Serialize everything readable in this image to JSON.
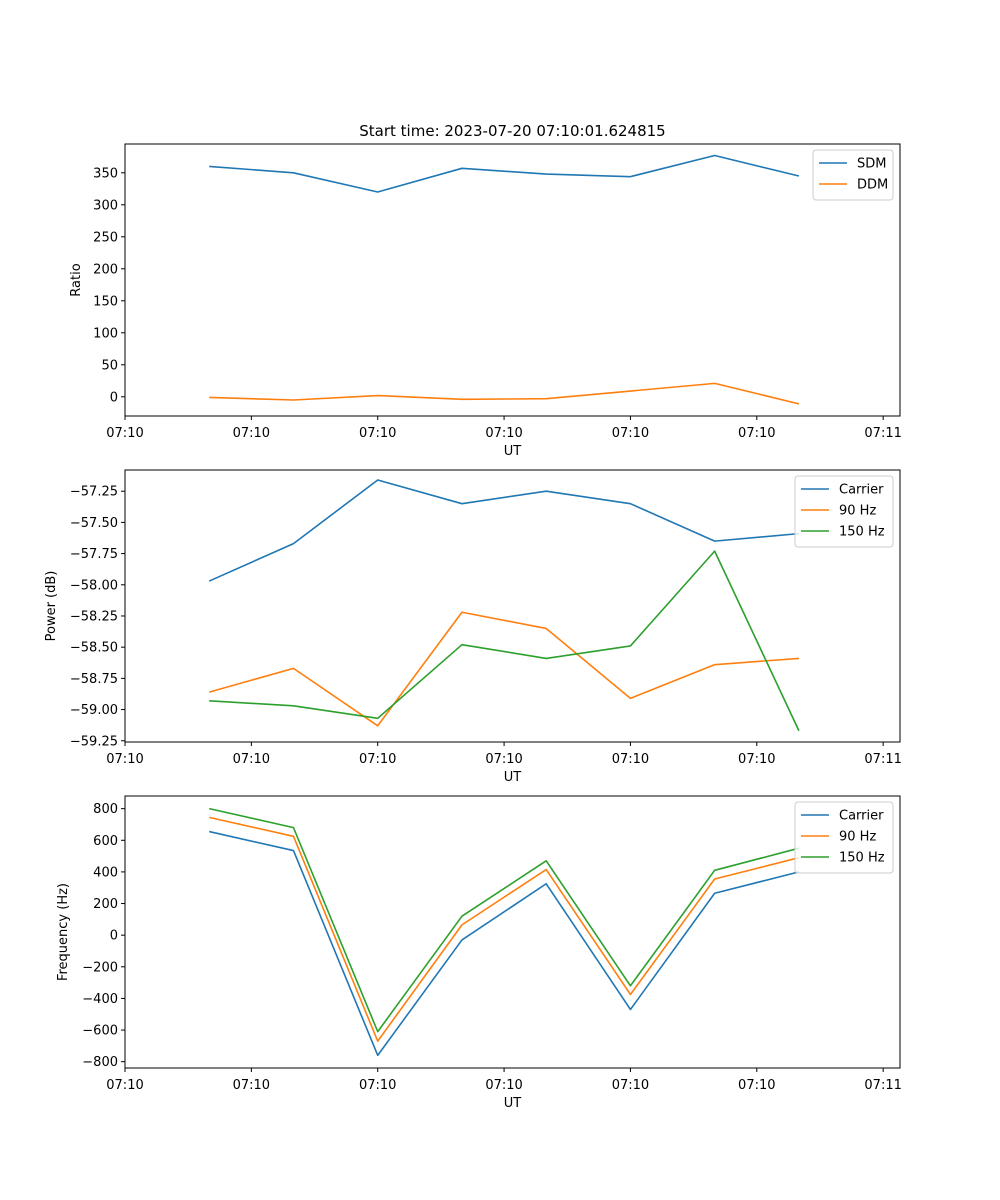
{
  "chart_data": [
    {
      "type": "line",
      "title": "Start time: 2023-07-20 07:10:01.624815",
      "xlabel": "UT",
      "ylabel": "Ratio",
      "x": [
        1,
        2,
        3,
        4,
        5,
        6,
        7,
        8
      ],
      "xlim": [
        0,
        9.2
      ],
      "ylim": [
        -30,
        395
      ],
      "xticks": [
        {
          "value": 0,
          "label": "07:10"
        },
        {
          "value": 1.5,
          "label": "07:10"
        },
        {
          "value": 3,
          "label": "07:10"
        },
        {
          "value": 4.5,
          "label": "07:10"
        },
        {
          "value": 6,
          "label": "07:10"
        },
        {
          "value": 7.5,
          "label": "07:10"
        },
        {
          "value": 9,
          "label": "07:11"
        }
      ],
      "yticks": [
        {
          "value": 0,
          "label": "0"
        },
        {
          "value": 50,
          "label": "50"
        },
        {
          "value": 100,
          "label": "100"
        },
        {
          "value": 150,
          "label": "150"
        },
        {
          "value": 200,
          "label": "200"
        },
        {
          "value": 250,
          "label": "250"
        },
        {
          "value": 300,
          "label": "300"
        },
        {
          "value": 350,
          "label": "350"
        }
      ],
      "series": [
        {
          "name": "SDM",
          "color": "#1f77b4",
          "values": [
            360,
            350,
            320,
            357,
            348,
            344,
            377,
            345
          ]
        },
        {
          "name": "DDM",
          "color": "#ff7f0e",
          "values": [
            -1,
            -5,
            2,
            -4,
            -3,
            9,
            21,
            -11
          ]
        }
      ],
      "legend": "top-right"
    },
    {
      "type": "line",
      "title": "",
      "xlabel": "UT",
      "ylabel": "Power (dB)",
      "x": [
        1,
        2,
        3,
        4,
        5,
        6,
        7,
        8
      ],
      "xlim": [
        0,
        9.2
      ],
      "ylim": [
        -59.26,
        -57.08
      ],
      "xticks": [
        {
          "value": 0,
          "label": "07:10"
        },
        {
          "value": 1.5,
          "label": "07:10"
        },
        {
          "value": 3,
          "label": "07:10"
        },
        {
          "value": 4.5,
          "label": "07:10"
        },
        {
          "value": 6,
          "label": "07:10"
        },
        {
          "value": 7.5,
          "label": "07:10"
        },
        {
          "value": 9,
          "label": "07:11"
        }
      ],
      "yticks": [
        {
          "value": -59.25,
          "label": "−59.25"
        },
        {
          "value": -59.0,
          "label": "−59.00"
        },
        {
          "value": -58.75,
          "label": "−58.75"
        },
        {
          "value": -58.5,
          "label": "−58.50"
        },
        {
          "value": -58.25,
          "label": "−58.25"
        },
        {
          "value": -58.0,
          "label": "−58.00"
        },
        {
          "value": -57.75,
          "label": "−57.75"
        },
        {
          "value": -57.5,
          "label": "−57.50"
        },
        {
          "value": -57.25,
          "label": "−57.25"
        }
      ],
      "series": [
        {
          "name": "Carrier",
          "color": "#1f77b4",
          "values": [
            -57.97,
            -57.67,
            -57.16,
            -57.35,
            -57.25,
            -57.35,
            -57.65,
            -57.59
          ]
        },
        {
          "name": "90 Hz",
          "color": "#ff7f0e",
          "values": [
            -58.86,
            -58.67,
            -59.13,
            -58.22,
            -58.35,
            -58.91,
            -58.64,
            -58.59
          ]
        },
        {
          "name": "150 Hz",
          "color": "#2ca02c",
          "values": [
            -58.93,
            -58.97,
            -59.07,
            -58.48,
            -58.59,
            -58.49,
            -57.73,
            -59.17
          ]
        }
      ],
      "legend": "top-right"
    },
    {
      "type": "line",
      "title": "",
      "xlabel": "UT",
      "ylabel": "Frequency (Hz)",
      "x": [
        1,
        2,
        3,
        4,
        5,
        6,
        7,
        8
      ],
      "xlim": [
        0,
        9.2
      ],
      "ylim": [
        -840,
        880
      ],
      "xticks": [
        {
          "value": 0,
          "label": "07:10"
        },
        {
          "value": 1.5,
          "label": "07:10"
        },
        {
          "value": 3,
          "label": "07:10"
        },
        {
          "value": 4.5,
          "label": "07:10"
        },
        {
          "value": 6,
          "label": "07:10"
        },
        {
          "value": 7.5,
          "label": "07:10"
        },
        {
          "value": 9,
          "label": "07:11"
        }
      ],
      "yticks": [
        {
          "value": -800,
          "label": "−800"
        },
        {
          "value": -600,
          "label": "−600"
        },
        {
          "value": -400,
          "label": "−400"
        },
        {
          "value": -200,
          "label": "−200"
        },
        {
          "value": 0,
          "label": "0"
        },
        {
          "value": 200,
          "label": "200"
        },
        {
          "value": 400,
          "label": "400"
        },
        {
          "value": 600,
          "label": "600"
        },
        {
          "value": 800,
          "label": "800"
        }
      ],
      "series": [
        {
          "name": "Carrier",
          "color": "#1f77b4",
          "values": [
            655,
            535,
            -760,
            -30,
            325,
            -470,
            265,
            400
          ]
        },
        {
          "name": "90 Hz",
          "color": "#ff7f0e",
          "values": [
            745,
            625,
            -670,
            65,
            415,
            -375,
            355,
            490
          ]
        },
        {
          "name": "150 Hz",
          "color": "#2ca02c",
          "values": [
            800,
            680,
            -610,
            120,
            470,
            -320,
            410,
            550
          ]
        }
      ],
      "legend": "top-right"
    }
  ]
}
